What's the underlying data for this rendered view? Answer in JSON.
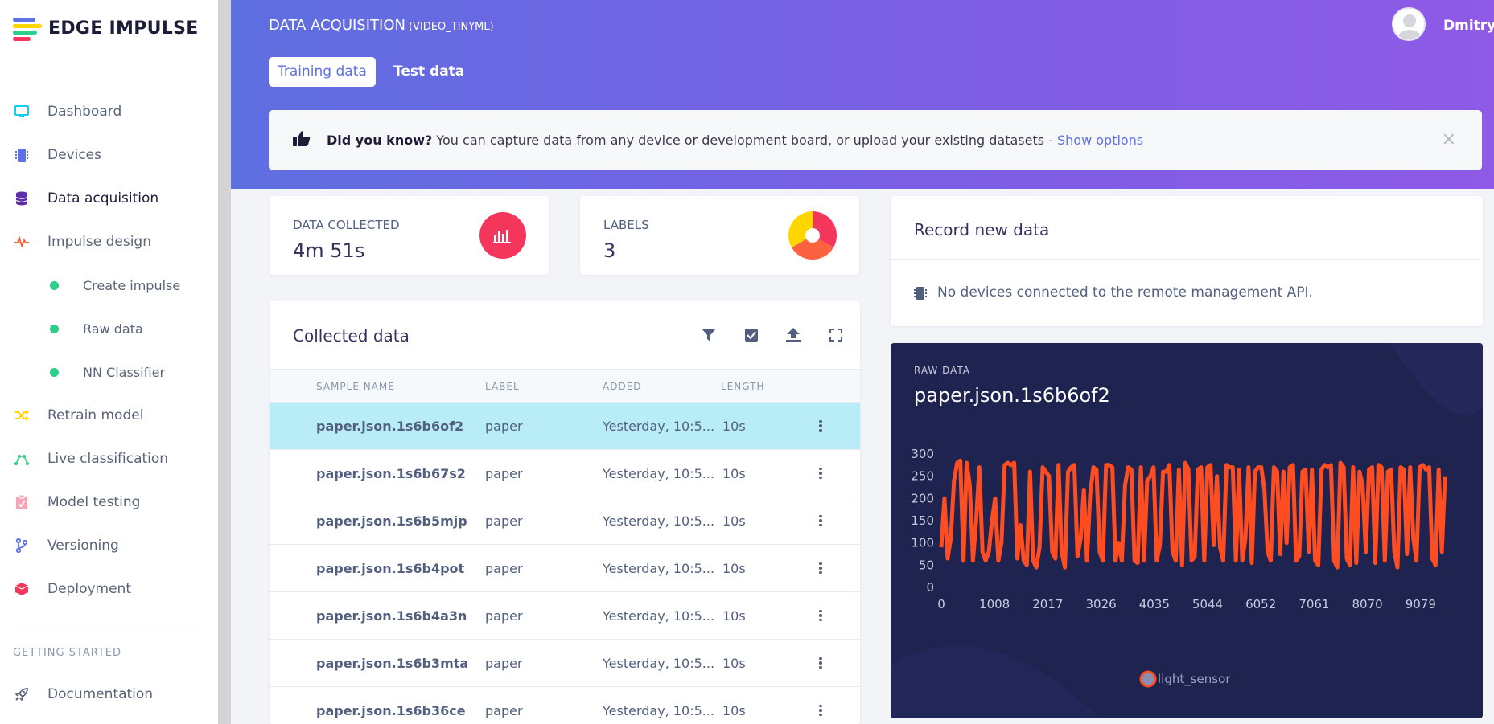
{
  "brand": {
    "name": "EDGE IMPULSE"
  },
  "sidebar": {
    "items": [
      {
        "label": "Dashboard",
        "icon": "monitor-icon",
        "color": "#11cdef"
      },
      {
        "label": "Devices",
        "icon": "chip-icon",
        "color": "#5e72e4"
      },
      {
        "label": "Data acquisition",
        "icon": "database-icon",
        "color": "#5e2ea8"
      },
      {
        "label": "Impulse design",
        "icon": "pulse-icon",
        "color": "#fb6340"
      }
    ],
    "sub_items": [
      {
        "label": "Create impulse"
      },
      {
        "label": "Raw data"
      },
      {
        "label": "NN Classifier"
      }
    ],
    "items_after": [
      {
        "label": "Retrain model",
        "icon": "shuffle-icon",
        "color": "#ffd600"
      },
      {
        "label": "Live classification",
        "icon": "graph-icon",
        "color": "#2dce89"
      },
      {
        "label": "Model testing",
        "icon": "clipboard-icon",
        "color": "#f3a4b5"
      },
      {
        "label": "Versioning",
        "icon": "branch-icon",
        "color": "#5e72e4"
      },
      {
        "label": "Deployment",
        "icon": "box-icon",
        "color": "#f5365c"
      }
    ],
    "heading": "GETTING STARTED",
    "docs": {
      "label": "Documentation",
      "icon": "rocket-icon"
    }
  },
  "header": {
    "title": "DATA ACQUISITION",
    "project": "(VIDEO_TINYML)",
    "user": "Dmitry",
    "tabs": [
      {
        "label": "Training data",
        "active": true
      },
      {
        "label": "Test data",
        "active": false
      }
    ]
  },
  "banner": {
    "bold": "Did you know?",
    "text": " You can capture data from any device or development board, or upload your existing datasets - ",
    "link": "Show options",
    "close": "×"
  },
  "stats": {
    "data_collected": {
      "label": "DATA COLLECTED",
      "value": "4m 51s"
    },
    "labels": {
      "label": "LABELS",
      "value": "3"
    }
  },
  "collected": {
    "title": "Collected data",
    "tools": [
      "filter-icon",
      "check-square-icon",
      "upload-icon",
      "fullscreen-icon"
    ],
    "columns": [
      "SAMPLE NAME",
      "LABEL",
      "ADDED",
      "LENGTH"
    ],
    "rows": [
      {
        "name": "paper.json.1s6b6of2",
        "label": "paper",
        "added": "Yesterday, 10:5...",
        "length": "10s",
        "selected": true
      },
      {
        "name": "paper.json.1s6b67s2",
        "label": "paper",
        "added": "Yesterday, 10:5...",
        "length": "10s"
      },
      {
        "name": "paper.json.1s6b5mjp",
        "label": "paper",
        "added": "Yesterday, 10:5...",
        "length": "10s"
      },
      {
        "name": "paper.json.1s6b4pot",
        "label": "paper",
        "added": "Yesterday, 10:5...",
        "length": "10s"
      },
      {
        "name": "paper.json.1s6b4a3n",
        "label": "paper",
        "added": "Yesterday, 10:5...",
        "length": "10s"
      },
      {
        "name": "paper.json.1s6b3mta",
        "label": "paper",
        "added": "Yesterday, 10:5...",
        "length": "10s"
      },
      {
        "name": "paper.json.1s6b36ce",
        "label": "paper",
        "added": "Yesterday, 10:5...",
        "length": "10s"
      }
    ]
  },
  "record": {
    "title": "Record new data",
    "message": "No devices connected to the remote management API."
  },
  "raw": {
    "label": "RAW DATA",
    "title": "paper.json.1s6b6of2"
  },
  "chart_data": {
    "type": "line",
    "title": "",
    "x_ticks": [
      0,
      1008,
      2017,
      3026,
      4035,
      5044,
      6052,
      7061,
      8070,
      9079
    ],
    "y_ticks": [
      0,
      50,
      100,
      150,
      200,
      250,
      300
    ],
    "ylim": [
      0,
      300
    ],
    "xlim": [
      0,
      9600
    ],
    "series": [
      {
        "name": "light_sensor",
        "color": "#ff4d22",
        "points": [
          [
            0,
            90
          ],
          [
            60,
            200
          ],
          [
            120,
            65
          ],
          [
            180,
            110
          ],
          [
            240,
            240
          ],
          [
            300,
            280
          ],
          [
            360,
            285
          ],
          [
            420,
            60
          ],
          [
            480,
            280
          ],
          [
            540,
            230
          ],
          [
            600,
            60
          ],
          [
            660,
            150
          ],
          [
            720,
            270
          ],
          [
            780,
            80
          ],
          [
            840,
            60
          ],
          [
            900,
            80
          ],
          [
            960,
            150
          ],
          [
            1020,
            200
          ],
          [
            1080,
            60
          ],
          [
            1140,
            100
          ],
          [
            1200,
            275
          ],
          [
            1260,
            280
          ],
          [
            1320,
            275
          ],
          [
            1380,
            280
          ],
          [
            1440,
            65
          ],
          [
            1500,
            140
          ],
          [
            1560,
            60
          ],
          [
            1620,
            50
          ],
          [
            1680,
            260
          ],
          [
            1740,
            60
          ],
          [
            1800,
            45
          ],
          [
            1860,
            90
          ],
          [
            1920,
            270
          ],
          [
            1980,
            260
          ],
          [
            2040,
            250
          ],
          [
            2100,
            80
          ],
          [
            2160,
            65
          ],
          [
            2220,
            275
          ],
          [
            2280,
            80
          ],
          [
            2340,
            45
          ],
          [
            2400,
            260
          ],
          [
            2460,
            270
          ],
          [
            2520,
            275
          ],
          [
            2580,
            70
          ],
          [
            2640,
            110
          ],
          [
            2700,
            220
          ],
          [
            2760,
            60
          ],
          [
            2820,
            210
          ],
          [
            2880,
            270
          ],
          [
            2940,
            265
          ],
          [
            3000,
            80
          ],
          [
            3060,
            60
          ],
          [
            3120,
            275
          ],
          [
            3180,
            275
          ],
          [
            3240,
            270
          ],
          [
            3300,
            60
          ],
          [
            3360,
            100
          ],
          [
            3420,
            60
          ],
          [
            3480,
            230
          ],
          [
            3540,
            270
          ],
          [
            3600,
            265
          ],
          [
            3660,
            60
          ],
          [
            3720,
            55
          ],
          [
            3780,
            270
          ],
          [
            3840,
            60
          ],
          [
            3900,
            240
          ],
          [
            3960,
            250
          ],
          [
            4020,
            270
          ],
          [
            4080,
            60
          ],
          [
            4140,
            95
          ],
          [
            4200,
            260
          ],
          [
            4260,
            260
          ],
          [
            4320,
            275
          ],
          [
            4380,
            80
          ],
          [
            4440,
            60
          ],
          [
            4500,
            265
          ],
          [
            4560,
            50
          ],
          [
            4620,
            280
          ],
          [
            4680,
            265
          ],
          [
            4740,
            60
          ],
          [
            4800,
            70
          ],
          [
            4860,
            265
          ],
          [
            4920,
            270
          ],
          [
            4980,
            60
          ],
          [
            5040,
            270
          ],
          [
            5100,
            275
          ],
          [
            5160,
            95
          ],
          [
            5220,
            250
          ],
          [
            5280,
            90
          ],
          [
            5340,
            60
          ],
          [
            5400,
            275
          ],
          [
            5460,
            270
          ],
          [
            5520,
            270
          ],
          [
            5580,
            60
          ],
          [
            5640,
            265
          ],
          [
            5700,
            60
          ],
          [
            5760,
            110
          ],
          [
            5820,
            270
          ],
          [
            5880,
            55
          ],
          [
            5940,
            260
          ],
          [
            6000,
            270
          ],
          [
            6060,
            270
          ],
          [
            6120,
            220
          ],
          [
            6180,
            80
          ],
          [
            6240,
            60
          ],
          [
            6300,
            270
          ],
          [
            6360,
            260
          ],
          [
            6420,
            75
          ],
          [
            6480,
            260
          ],
          [
            6540,
            100
          ],
          [
            6600,
            270
          ],
          [
            6660,
            275
          ],
          [
            6720,
            60
          ],
          [
            6780,
            70
          ],
          [
            6840,
            260
          ],
          [
            6900,
            265
          ],
          [
            6960,
            80
          ],
          [
            7020,
            265
          ],
          [
            7080,
            60
          ],
          [
            7140,
            50
          ],
          [
            7200,
            265
          ],
          [
            7260,
            275
          ],
          [
            7320,
            270
          ],
          [
            7380,
            275
          ],
          [
            7440,
            60
          ],
          [
            7500,
            45
          ],
          [
            7560,
            280
          ],
          [
            7620,
            270
          ],
          [
            7680,
            65
          ],
          [
            7740,
            50
          ],
          [
            7800,
            270
          ],
          [
            7860,
            55
          ],
          [
            7920,
            260
          ],
          [
            7980,
            230
          ],
          [
            8040,
            80
          ],
          [
            8100,
            265
          ],
          [
            8160,
            270
          ],
          [
            8220,
            55
          ],
          [
            8280,
            275
          ],
          [
            8340,
            270
          ],
          [
            8400,
            60
          ],
          [
            8460,
            260
          ],
          [
            8520,
            265
          ],
          [
            8580,
            80
          ],
          [
            8640,
            45
          ],
          [
            8700,
            270
          ],
          [
            8760,
            265
          ],
          [
            8820,
            75
          ],
          [
            8880,
            270
          ],
          [
            8940,
            110
          ],
          [
            9000,
            60
          ],
          [
            9060,
            270
          ],
          [
            9120,
            275
          ],
          [
            9180,
            265
          ],
          [
            9240,
            270
          ],
          [
            9300,
            65
          ],
          [
            9360,
            50
          ],
          [
            9420,
            265
          ],
          [
            9480,
            80
          ],
          [
            9540,
            250
          ]
        ]
      }
    ]
  },
  "colors": {
    "accent": "#5e72e4",
    "selected_row": "#b8ecf6",
    "stat_red": "#f5365c",
    "pie": [
      "#f5365c",
      "#fb6340",
      "#ffd600"
    ],
    "raw_bg": "#1f2350",
    "series": "#ff4d22"
  }
}
